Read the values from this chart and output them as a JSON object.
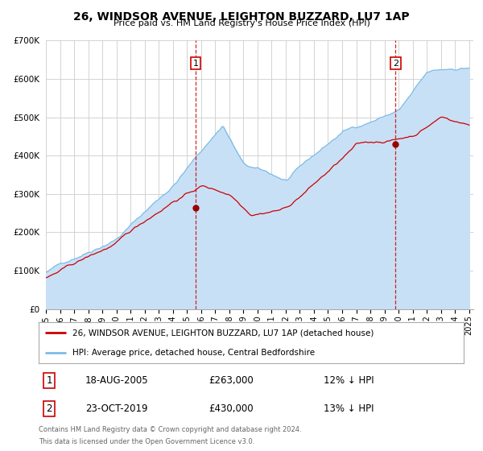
{
  "title": "26, WINDSOR AVENUE, LEIGHTON BUZZARD, LU7 1AP",
  "subtitle": "Price paid vs. HM Land Registry's House Price Index (HPI)",
  "sale1_date": "18-AUG-2005",
  "sale1_price": 263000,
  "sale1_note": "12% ↓ HPI",
  "sale2_date": "23-OCT-2019",
  "sale2_price": 430000,
  "sale2_note": "13% ↓ HPI",
  "legend_red": "26, WINDSOR AVENUE, LEIGHTON BUZZARD, LU7 1AP (detached house)",
  "legend_blue": "HPI: Average price, detached house, Central Bedfordshire",
  "footnote1": "Contains HM Land Registry data © Crown copyright and database right 2024.",
  "footnote2": "This data is licensed under the Open Government Licence v3.0.",
  "hpi_color": "#7bbce8",
  "hpi_fill_color": "#c8e0f5",
  "sale_color": "#cc0000",
  "marker_color": "#990000",
  "vline_color": "#cc0000",
  "ylim_max": 700000,
  "ylabel_ticks": [
    0,
    100000,
    200000,
    300000,
    400000,
    500000,
    600000,
    700000
  ],
  "background_color": "#ffffff",
  "grid_color": "#cccccc",
  "sale1_x": 2005.625,
  "sale2_x": 2019.792
}
